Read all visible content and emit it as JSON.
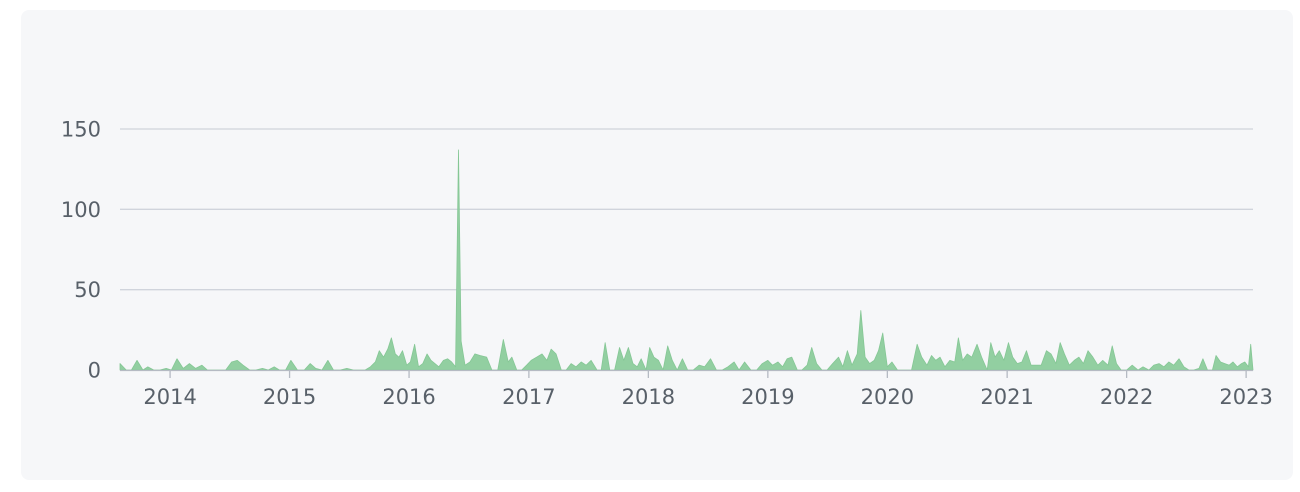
{
  "chart_data": {
    "type": "area",
    "title": "",
    "xlabel": "",
    "ylabel": "",
    "x_axis": {
      "type": "date",
      "range": [
        "2013-08-01",
        "2023-01-22"
      ],
      "ticks": [
        {
          "date": "2014-01-01",
          "label": "2014"
        },
        {
          "date": "2015-01-01",
          "label": "2015"
        },
        {
          "date": "2016-01-01",
          "label": "2016"
        },
        {
          "date": "2017-01-01",
          "label": "2017"
        },
        {
          "date": "2018-01-01",
          "label": "2018"
        },
        {
          "date": "2019-01-01",
          "label": "2019"
        },
        {
          "date": "2020-01-01",
          "label": "2020"
        },
        {
          "date": "2021-01-01",
          "label": "2021"
        },
        {
          "date": "2022-01-01",
          "label": "2022"
        },
        {
          "date": "2023-01-01",
          "label": "2023"
        }
      ]
    },
    "y_axis": {
      "range": [
        0,
        150
      ],
      "ticks": [
        {
          "value": 0,
          "label": "0"
        },
        {
          "value": 50,
          "label": "50"
        },
        {
          "value": 100,
          "label": "100"
        },
        {
          "value": 150,
          "label": "150"
        }
      ]
    },
    "grid": true,
    "legend": "none",
    "colors": {
      "fill": "#92cfa1",
      "stroke": "#85c795",
      "grid": "#d0d4dc",
      "axis": "#b5bac3",
      "label": "#586069",
      "card": "#f6f7f9"
    },
    "series": [
      {
        "points": [
          [
            "2013-08-01",
            4
          ],
          [
            "2013-08-20",
            0
          ],
          [
            "2013-09-05",
            0
          ],
          [
            "2013-09-22",
            6
          ],
          [
            "2013-10-10",
            0
          ],
          [
            "2013-10-25",
            2
          ],
          [
            "2013-11-12",
            0
          ],
          [
            "2013-12-01",
            0
          ],
          [
            "2013-12-20",
            1
          ],
          [
            "2014-01-05",
            0
          ],
          [
            "2014-01-22",
            7
          ],
          [
            "2014-02-10",
            1
          ],
          [
            "2014-03-01",
            4
          ],
          [
            "2014-03-20",
            1
          ],
          [
            "2014-04-08",
            3
          ],
          [
            "2014-04-25",
            0
          ],
          [
            "2014-05-15",
            0
          ],
          [
            "2014-06-01",
            0
          ],
          [
            "2014-06-20",
            0
          ],
          [
            "2014-07-08",
            5
          ],
          [
            "2014-07-25",
            6
          ],
          [
            "2014-08-12",
            3
          ],
          [
            "2014-09-01",
            0
          ],
          [
            "2014-09-20",
            0
          ],
          [
            "2014-10-10",
            1
          ],
          [
            "2014-10-28",
            0
          ],
          [
            "2014-11-15",
            2
          ],
          [
            "2014-12-01",
            0
          ],
          [
            "2014-12-20",
            0
          ],
          [
            "2015-01-05",
            6
          ],
          [
            "2015-01-25",
            0
          ],
          [
            "2015-02-15",
            0
          ],
          [
            "2015-03-05",
            4
          ],
          [
            "2015-03-22",
            1
          ],
          [
            "2015-04-10",
            0
          ],
          [
            "2015-04-28",
            6
          ],
          [
            "2015-05-15",
            0
          ],
          [
            "2015-06-05",
            0
          ],
          [
            "2015-06-25",
            1
          ],
          [
            "2015-07-15",
            0
          ],
          [
            "2015-08-01",
            0
          ],
          [
            "2015-08-20",
            0
          ],
          [
            "2015-09-05",
            2
          ],
          [
            "2015-09-20",
            5
          ],
          [
            "2015-10-02",
            12
          ],
          [
            "2015-10-15",
            8
          ],
          [
            "2015-10-28",
            13
          ],
          [
            "2015-11-08",
            20
          ],
          [
            "2015-11-20",
            10
          ],
          [
            "2015-12-01",
            8
          ],
          [
            "2015-12-12",
            12
          ],
          [
            "2015-12-25",
            3
          ],
          [
            "2016-01-05",
            5
          ],
          [
            "2016-01-18",
            16
          ],
          [
            "2016-01-30",
            2
          ],
          [
            "2016-02-12",
            4
          ],
          [
            "2016-02-25",
            10
          ],
          [
            "2016-03-08",
            6
          ],
          [
            "2016-03-20",
            4
          ],
          [
            "2016-04-01",
            2
          ],
          [
            "2016-04-15",
            6
          ],
          [
            "2016-04-28",
            7
          ],
          [
            "2016-05-10",
            5
          ],
          [
            "2016-05-22",
            2
          ],
          [
            "2016-05-31",
            137
          ],
          [
            "2016-06-08",
            18
          ],
          [
            "2016-06-20",
            3
          ],
          [
            "2016-07-05",
            5
          ],
          [
            "2016-07-20",
            10
          ],
          [
            "2016-08-05",
            9
          ],
          [
            "2016-08-25",
            8
          ],
          [
            "2016-09-10",
            0
          ],
          [
            "2016-09-28",
            0
          ],
          [
            "2016-10-15",
            19
          ],
          [
            "2016-10-30",
            5
          ],
          [
            "2016-11-10",
            8
          ],
          [
            "2016-11-25",
            0
          ],
          [
            "2016-12-10",
            0
          ],
          [
            "2016-12-25",
            3
          ],
          [
            "2017-01-08",
            6
          ],
          [
            "2017-01-25",
            8
          ],
          [
            "2017-02-10",
            10
          ],
          [
            "2017-02-25",
            6
          ],
          [
            "2017-03-10",
            13
          ],
          [
            "2017-03-25",
            10
          ],
          [
            "2017-04-10",
            0
          ],
          [
            "2017-04-25",
            0
          ],
          [
            "2017-05-10",
            4
          ],
          [
            "2017-05-25",
            2
          ],
          [
            "2017-06-10",
            5
          ],
          [
            "2017-06-25",
            3
          ],
          [
            "2017-07-10",
            6
          ],
          [
            "2017-07-28",
            0
          ],
          [
            "2017-08-10",
            0
          ],
          [
            "2017-08-22",
            17
          ],
          [
            "2017-09-05",
            0
          ],
          [
            "2017-09-20",
            0
          ],
          [
            "2017-10-05",
            14
          ],
          [
            "2017-10-18",
            6
          ],
          [
            "2017-11-01",
            14
          ],
          [
            "2017-11-15",
            4
          ],
          [
            "2017-11-28",
            2
          ],
          [
            "2017-12-10",
            7
          ],
          [
            "2017-12-25",
            0
          ],
          [
            "2018-01-05",
            14
          ],
          [
            "2018-01-18",
            8
          ],
          [
            "2018-02-01",
            6
          ],
          [
            "2018-02-15",
            0
          ],
          [
            "2018-03-01",
            15
          ],
          [
            "2018-03-15",
            6
          ],
          [
            "2018-03-30",
            0
          ],
          [
            "2018-04-15",
            7
          ],
          [
            "2018-05-01",
            0
          ],
          [
            "2018-05-18",
            0
          ],
          [
            "2018-06-05",
            3
          ],
          [
            "2018-06-22",
            2
          ],
          [
            "2018-07-10",
            7
          ],
          [
            "2018-07-28",
            0
          ],
          [
            "2018-08-15",
            0
          ],
          [
            "2018-09-01",
            2
          ],
          [
            "2018-09-20",
            5
          ],
          [
            "2018-10-05",
            0
          ],
          [
            "2018-10-22",
            5
          ],
          [
            "2018-11-10",
            0
          ],
          [
            "2018-11-28",
            0
          ],
          [
            "2018-12-15",
            4
          ],
          [
            "2019-01-01",
            6
          ],
          [
            "2019-01-15",
            3
          ],
          [
            "2019-02-01",
            5
          ],
          [
            "2019-02-15",
            2
          ],
          [
            "2019-03-01",
            7
          ],
          [
            "2019-03-15",
            8
          ],
          [
            "2019-04-01",
            0
          ],
          [
            "2019-04-15",
            0
          ],
          [
            "2019-05-01",
            3
          ],
          [
            "2019-05-15",
            14
          ],
          [
            "2019-05-30",
            4
          ],
          [
            "2019-06-15",
            0
          ],
          [
            "2019-07-01",
            0
          ],
          [
            "2019-07-18",
            4
          ],
          [
            "2019-08-05",
            8
          ],
          [
            "2019-08-18",
            2
          ],
          [
            "2019-09-01",
            12
          ],
          [
            "2019-09-15",
            3
          ],
          [
            "2019-10-01",
            10
          ],
          [
            "2019-10-12",
            37
          ],
          [
            "2019-10-25",
            8
          ],
          [
            "2019-11-08",
            4
          ],
          [
            "2019-11-22",
            6
          ],
          [
            "2019-12-05",
            12
          ],
          [
            "2019-12-18",
            23
          ],
          [
            "2020-01-01",
            2
          ],
          [
            "2020-01-15",
            5
          ],
          [
            "2020-02-01",
            0
          ],
          [
            "2020-02-15",
            0
          ],
          [
            "2020-03-01",
            0
          ],
          [
            "2020-03-15",
            0
          ],
          [
            "2020-04-01",
            16
          ],
          [
            "2020-04-15",
            8
          ],
          [
            "2020-05-01",
            3
          ],
          [
            "2020-05-15",
            9
          ],
          [
            "2020-05-28",
            6
          ],
          [
            "2020-06-10",
            8
          ],
          [
            "2020-06-25",
            2
          ],
          [
            "2020-07-10",
            6
          ],
          [
            "2020-07-25",
            5
          ],
          [
            "2020-08-05",
            20
          ],
          [
            "2020-08-18",
            6
          ],
          [
            "2020-09-01",
            10
          ],
          [
            "2020-09-15",
            8
          ],
          [
            "2020-10-01",
            16
          ],
          [
            "2020-10-15",
            8
          ],
          [
            "2020-11-01",
            0
          ],
          [
            "2020-11-12",
            17
          ],
          [
            "2020-11-25",
            8
          ],
          [
            "2020-12-08",
            12
          ],
          [
            "2020-12-22",
            6
          ],
          [
            "2021-01-05",
            17
          ],
          [
            "2021-01-18",
            8
          ],
          [
            "2021-02-01",
            4
          ],
          [
            "2021-02-15",
            5
          ],
          [
            "2021-03-01",
            12
          ],
          [
            "2021-03-15",
            3
          ],
          [
            "2021-04-01",
            3
          ],
          [
            "2021-04-15",
            3
          ],
          [
            "2021-05-01",
            12
          ],
          [
            "2021-05-15",
            10
          ],
          [
            "2021-05-30",
            4
          ],
          [
            "2021-06-12",
            17
          ],
          [
            "2021-06-25",
            10
          ],
          [
            "2021-07-10",
            3
          ],
          [
            "2021-07-25",
            6
          ],
          [
            "2021-08-08",
            8
          ],
          [
            "2021-08-22",
            4
          ],
          [
            "2021-09-05",
            12
          ],
          [
            "2021-09-20",
            8
          ],
          [
            "2021-10-05",
            3
          ],
          [
            "2021-10-20",
            6
          ],
          [
            "2021-11-05",
            3
          ],
          [
            "2021-11-18",
            15
          ],
          [
            "2021-12-01",
            4
          ],
          [
            "2021-12-15",
            0
          ],
          [
            "2022-01-01",
            0
          ],
          [
            "2022-01-18",
            3
          ],
          [
            "2022-02-05",
            0
          ],
          [
            "2022-02-20",
            2
          ],
          [
            "2022-03-10",
            0
          ],
          [
            "2022-03-25",
            3
          ],
          [
            "2022-04-10",
            4
          ],
          [
            "2022-04-25",
            2
          ],
          [
            "2022-05-10",
            5
          ],
          [
            "2022-05-25",
            3
          ],
          [
            "2022-06-10",
            7
          ],
          [
            "2022-06-25",
            2
          ],
          [
            "2022-07-10",
            0
          ],
          [
            "2022-07-25",
            0
          ],
          [
            "2022-08-10",
            1
          ],
          [
            "2022-08-22",
            7
          ],
          [
            "2022-09-05",
            0
          ],
          [
            "2022-09-20",
            0
          ],
          [
            "2022-10-01",
            9
          ],
          [
            "2022-10-15",
            5
          ],
          [
            "2022-10-28",
            4
          ],
          [
            "2022-11-10",
            3
          ],
          [
            "2022-11-22",
            5
          ],
          [
            "2022-12-05",
            2
          ],
          [
            "2022-12-18",
            4
          ],
          [
            "2022-12-28",
            5
          ],
          [
            "2023-01-08",
            2
          ],
          [
            "2023-01-15",
            16
          ],
          [
            "2023-01-22",
            0
          ]
        ]
      }
    ]
  }
}
